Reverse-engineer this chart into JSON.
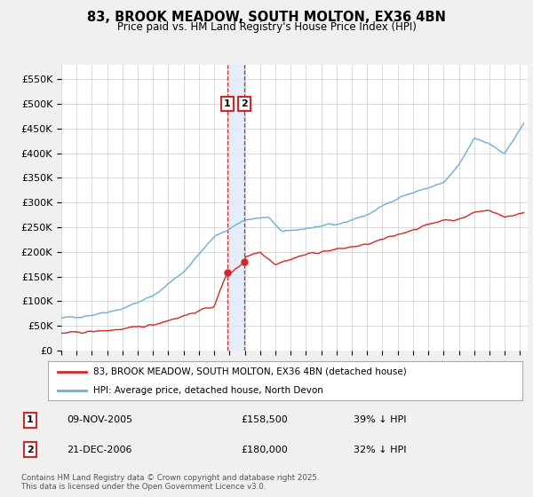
{
  "title": "83, BROOK MEADOW, SOUTH MOLTON, EX36 4BN",
  "subtitle": "Price paid vs. HM Land Registry's House Price Index (HPI)",
  "ylabel_values": [
    0,
    50000,
    100000,
    150000,
    200000,
    250000,
    300000,
    350000,
    400000,
    450000,
    500000,
    550000
  ],
  "ytick_labels": [
    "£0",
    "£50K",
    "£100K",
    "£150K",
    "£200K",
    "£250K",
    "£300K",
    "£350K",
    "£400K",
    "£450K",
    "£500K",
    "£550K"
  ],
  "ylim": [
    0,
    580000
  ],
  "xlim_start": 1995.0,
  "xlim_end": 2025.5,
  "transaction1_date": 2005.86,
  "transaction2_date": 2006.97,
  "transaction1_price": 158500,
  "transaction2_price": 180000,
  "hpi_base_x": [
    1995,
    1997,
    1999,
    2001,
    2003,
    2005,
    2007,
    2008.5,
    2009.5,
    2011,
    2013,
    2015,
    2017,
    2019,
    2020,
    2021,
    2022,
    2023,
    2024,
    2025.25
  ],
  "hpi_base_y": [
    65000,
    72000,
    85000,
    110000,
    160000,
    230000,
    265000,
    270000,
    240000,
    248000,
    255000,
    275000,
    310000,
    330000,
    340000,
    375000,
    430000,
    420000,
    400000,
    460000
  ],
  "price_base_x": [
    1995,
    1997,
    1999,
    2001,
    2003,
    2005,
    2005.86,
    2006,
    2006.97,
    2007,
    2008,
    2009,
    2010,
    2011,
    2013,
    2015,
    2017,
    2019,
    2020,
    2021,
    2022,
    2023,
    2024,
    2025.25
  ],
  "price_base_y": [
    35000,
    38000,
    43000,
    52000,
    70000,
    90000,
    158500,
    155000,
    180000,
    190000,
    200000,
    175000,
    185000,
    195000,
    205000,
    215000,
    235000,
    255000,
    265000,
    265000,
    280000,
    285000,
    270000,
    280000
  ],
  "legend1": "83, BROOK MEADOW, SOUTH MOLTON, EX36 4BN (detached house)",
  "legend2": "HPI: Average price, detached house, North Devon",
  "footnote": "Contains HM Land Registry data © Crown copyright and database right 2025.\nThis data is licensed under the Open Government Licence v3.0.",
  "hpi_color": "#6baed6",
  "price_color": "#d62728",
  "transaction_vline_color": "#d62728",
  "transaction_fill_color": "#deebf7",
  "bg_color": "#f0f0f0",
  "plot_bg_color": "#ffffff",
  "grid_color": "#cccccc"
}
